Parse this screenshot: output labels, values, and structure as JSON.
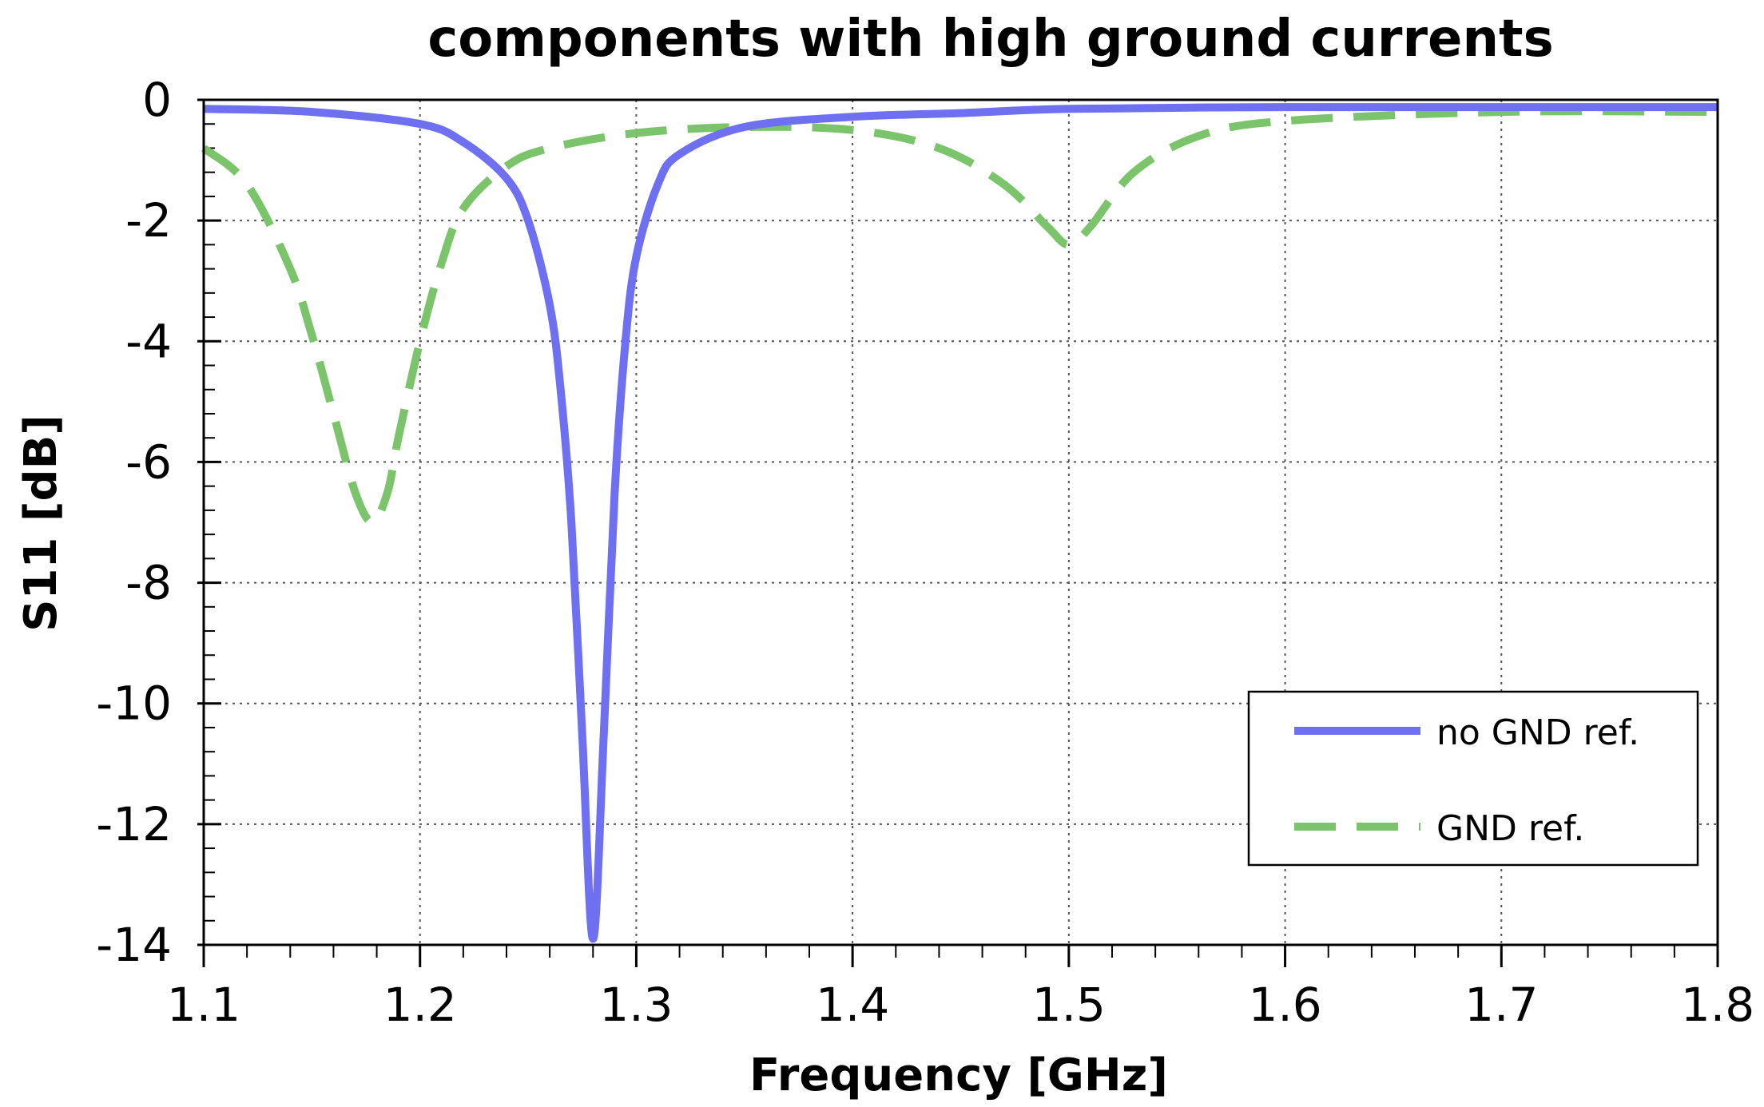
{
  "chart_data": {
    "type": "line",
    "title": "components with high ground currents",
    "xlabel": "Frequency [GHz]",
    "ylabel": "S11 [dB]",
    "xlim": [
      1.1,
      1.8
    ],
    "ylim": [
      -14,
      0
    ],
    "x_ticks": [
      "1.1",
      "1.2",
      "1.3",
      "1.4",
      "1.5",
      "1.6",
      "1.7",
      "1.8"
    ],
    "y_ticks": [
      "0",
      "-2",
      "-4",
      "-6",
      "-8",
      "-10",
      "-12",
      "-14"
    ],
    "grid": true,
    "legend_position": "bottom-right",
    "series": [
      {
        "name": "no GND ref.",
        "color": "#6f6ff2",
        "style": "solid",
        "x": [
          1.1,
          1.15,
          1.2,
          1.22,
          1.24,
          1.25,
          1.26,
          1.265,
          1.27,
          1.275,
          1.28,
          1.285,
          1.29,
          1.295,
          1.3,
          1.31,
          1.32,
          1.35,
          1.4,
          1.45,
          1.5,
          1.6,
          1.7,
          1.8
        ],
        "y": [
          -0.15,
          -0.2,
          -0.4,
          -0.7,
          -1.3,
          -2.0,
          -3.4,
          -4.8,
          -7.0,
          -10.5,
          -13.9,
          -10.5,
          -6.5,
          -4.0,
          -2.6,
          -1.4,
          -0.9,
          -0.45,
          -0.28,
          -0.22,
          -0.15,
          -0.12,
          -0.12,
          -0.12
        ]
      },
      {
        "name": "GND ref.",
        "color": "#7bc46b",
        "style": "dashed",
        "x": [
          1.1,
          1.12,
          1.14,
          1.15,
          1.16,
          1.17,
          1.178,
          1.185,
          1.19,
          1.2,
          1.21,
          1.22,
          1.24,
          1.26,
          1.3,
          1.35,
          1.4,
          1.44,
          1.47,
          1.49,
          1.5,
          1.51,
          1.53,
          1.56,
          1.6,
          1.7,
          1.8
        ],
        "y": [
          -0.8,
          -1.4,
          -2.8,
          -3.9,
          -5.2,
          -6.5,
          -7.0,
          -6.5,
          -5.6,
          -4.0,
          -2.7,
          -1.8,
          -1.1,
          -0.8,
          -0.55,
          -0.45,
          -0.5,
          -0.8,
          -1.4,
          -2.1,
          -2.4,
          -2.1,
          -1.2,
          -0.6,
          -0.35,
          -0.2,
          -0.2
        ]
      }
    ]
  }
}
